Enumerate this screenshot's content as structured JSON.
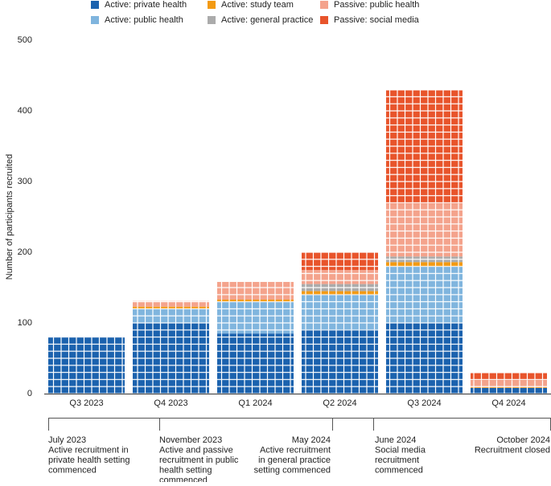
{
  "chart_data": {
    "type": "bar",
    "stacked": true,
    "y_label": "Number of participants recruited",
    "categories": [
      "Q3 2023",
      "Q4 2023",
      "Q1 2024",
      "Q2 2024",
      "Q3 2024",
      "Q4 2024"
    ],
    "series": [
      {
        "name": "Active: private health",
        "color": "#1b62ae",
        "values": [
          80,
          100,
          85,
          90,
          100,
          8
        ]
      },
      {
        "name": "Active: public health",
        "color": "#80b5de",
        "values": [
          0,
          20,
          45,
          50,
          80,
          0
        ]
      },
      {
        "name": "Active: study team",
        "color": "#f39a12",
        "values": [
          0,
          3,
          3,
          5,
          6,
          1
        ]
      },
      {
        "name": "Active: general practice",
        "color": "#ababab",
        "values": [
          0,
          0,
          0,
          10,
          8,
          0
        ]
      },
      {
        "name": "Passive: public health",
        "color": "#f4a38c",
        "values": [
          0,
          8,
          25,
          20,
          75,
          10
        ]
      },
      {
        "name": "Passive: social media",
        "color": "#e8542b",
        "values": [
          0,
          0,
          0,
          25,
          160,
          10
        ]
      }
    ],
    "ylim": [
      0,
      500
    ],
    "yticks": [
      0,
      100,
      200,
      300,
      400,
      500
    ],
    "annotations": [
      {
        "lines": [
          "July 2023",
          "Active recruitment in",
          "private health setting",
          "commenced"
        ]
      },
      {
        "lines": [
          "November 2023",
          "Active and passive",
          "recruitment in public",
          "health setting",
          "commenced"
        ]
      },
      {
        "lines": [
          "May 2024",
          "Active recruitment",
          "in general practice",
          "setting commenced"
        ]
      },
      {
        "lines": [
          "June 2024",
          "Social media",
          "recruitment",
          "commenced"
        ]
      },
      {
        "lines": [
          "October 2024",
          "Recruitment closed"
        ]
      }
    ]
  }
}
